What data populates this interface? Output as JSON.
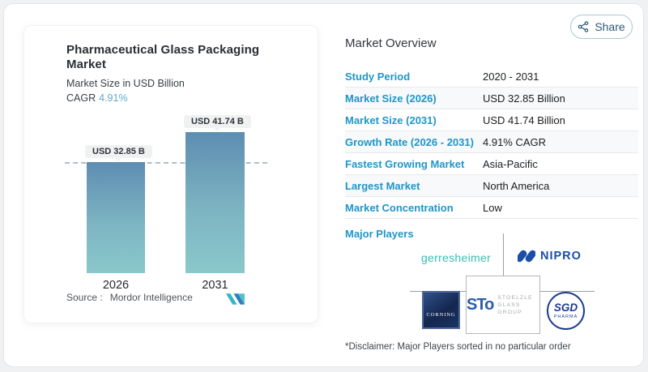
{
  "app": {
    "share_label": "Share"
  },
  "left_card": {
    "title": "Pharmaceutical Glass Packaging Market",
    "subtitle": "Market Size in USD Billion",
    "cagr_label": "CAGR",
    "cagr_value": "4.91%",
    "source_label": "Source :",
    "source_name": "Mordor Intelligence"
  },
  "chart_data": {
    "type": "bar",
    "title": "Pharmaceutical Glass Packaging Market",
    "subtitle": "Market Size in USD Billion",
    "categories": [
      "2026",
      "2031"
    ],
    "values": [
      32.85,
      41.74
    ],
    "value_labels": [
      "USD 32.85 B",
      "USD 41.74 B"
    ],
    "unit": "USD Billion",
    "cagr_pct": 4.91,
    "ylim": [
      0,
      45
    ],
    "grid": false,
    "legend": false,
    "reference_line": {
      "value": 32.85,
      "style": "dashed"
    },
    "bar_gradient_top": "#5e8db2",
    "bar_gradient_bottom": "#8ac8cb"
  },
  "overview": {
    "title": "Market Overview",
    "rows": [
      {
        "label": "Study Period",
        "value": "2020 - 2031"
      },
      {
        "label": "Market Size (2026)",
        "value": "USD 32.85 Billion"
      },
      {
        "label": "Market Size (2031)",
        "value": "USD 41.74 Billion"
      },
      {
        "label": "Growth Rate (2026 - 2031)",
        "value": "4.91% CAGR"
      },
      {
        "label": "Fastest Growing Market",
        "value": "Asia-Pacific"
      },
      {
        "label": "Largest Market",
        "value": "North America"
      },
      {
        "label": "Market Concentration",
        "value": "Low"
      }
    ],
    "major_players_label": "Major Players",
    "players": {
      "gerresheimer": "gerresheimer",
      "nipro": "NIPRO",
      "corning": "CORNING",
      "stoelzle_mark": "STo",
      "stoelzle_line1": "STOELZLE",
      "stoelzle_line2": "GLASS GROUP",
      "sgd": "SGD",
      "sgd_sub": "PHARMA"
    },
    "disclaimer": "*Disclaimer: Major Players sorted in no particular order"
  },
  "colors": {
    "accent_blue": "#1e96c8",
    "cagr_blue": "#5fa9c9",
    "bar_top": "#5e8db2",
    "bar_bottom": "#8ac8cb",
    "gerresheimer_teal": "#35c0b4",
    "nipro_navy": "#1b4ea6",
    "sgd_navy": "#1d3c8f",
    "stoelzle_blue": "#2a5ca8",
    "corning_navy": "#14274e",
    "share_color": "#2d5a74"
  }
}
